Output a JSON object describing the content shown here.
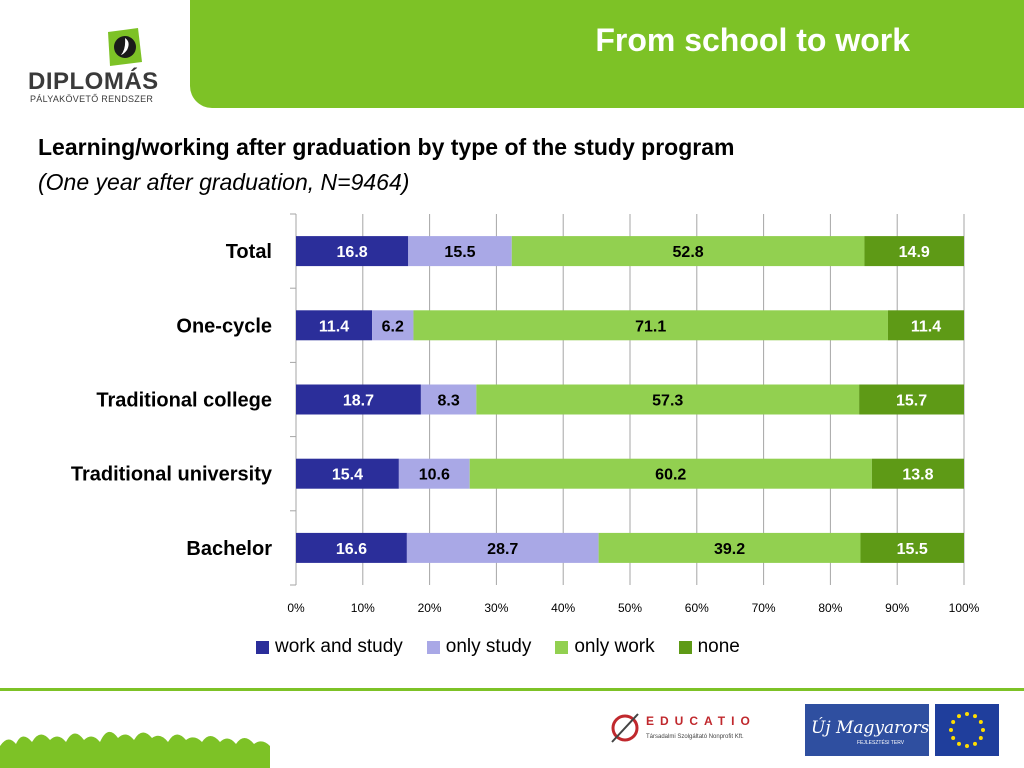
{
  "header": {
    "title": "From school to work"
  },
  "logo": {
    "name": "DIPLOMÁS",
    "subtitle": "PÁLYAKÖVETŐ RENDSZER"
  },
  "chart_title": "Learning/working after graduation by type of the study program",
  "chart_subtitle": "(One year after graduation, N=9464)",
  "chart_data": {
    "type": "bar",
    "orientation": "horizontal",
    "stacked": "percent",
    "categories": [
      "Total",
      "One-cycle",
      "Traditional college",
      "Traditional university",
      "Bachelor"
    ],
    "series": [
      {
        "name": "work and study",
        "color": "#2b2e9a",
        "values": [
          16.8,
          11.4,
          18.7,
          15.4,
          16.6
        ]
      },
      {
        "name": "only study",
        "color": "#a9a8e6",
        "values": [
          15.5,
          6.2,
          8.3,
          10.6,
          28.7
        ]
      },
      {
        "name": "only work",
        "color": "#92d050",
        "values": [
          52.8,
          71.1,
          57.3,
          60.2,
          39.2
        ]
      },
      {
        "name": "none",
        "color": "#5e9a16",
        "values": [
          14.9,
          11.4,
          15.7,
          13.8,
          15.5
        ]
      }
    ],
    "x_ticks": [
      "0%",
      "10%",
      "20%",
      "30%",
      "40%",
      "50%",
      "60%",
      "70%",
      "80%",
      "90%",
      "100%"
    ],
    "xlim": [
      0,
      100
    ],
    "grid": true,
    "legend_position": "bottom",
    "data_labels": true
  },
  "footer": {
    "educatio_name": "EDUCATIO",
    "educatio_sub": "Társadalmi Szolgáltató Nonprofit Kft.",
    "uj_text": "Új Magyarország",
    "uj_sub": "FEJLESZTÉSI TERV"
  },
  "colors": {
    "accent": "#7dc226"
  }
}
